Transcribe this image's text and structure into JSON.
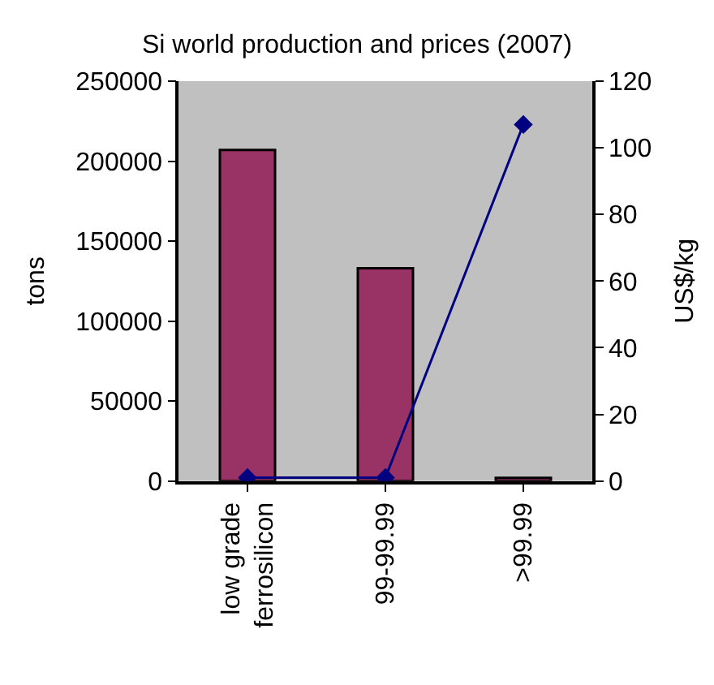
{
  "chart_data": {
    "type": "bar",
    "title": "Si world production and prices (2007)",
    "ylabel": "tons",
    "y2label": "US$/kg",
    "categories": [
      "low grade ferrosilicon",
      "99-99.99",
      ">99.99"
    ],
    "series": [
      {
        "color": "#993366",
        "values": [
          207000,
          133000,
          2000
        ]
      },
      {
        "type": "line",
        "axis": "y2",
        "color": "#000080",
        "values": [
          1,
          1,
          107
        ],
        "marker": "diamond",
        "line_style": "solid"
      }
    ],
    "ylim": [
      0,
      250000
    ],
    "yticks": [
      0,
      50000,
      100000,
      150000,
      200000,
      250000
    ],
    "y2lim": [
      0,
      120
    ],
    "y2ticks": [
      0,
      20,
      40,
      60,
      80,
      100,
      120
    ],
    "grid": false
  }
}
